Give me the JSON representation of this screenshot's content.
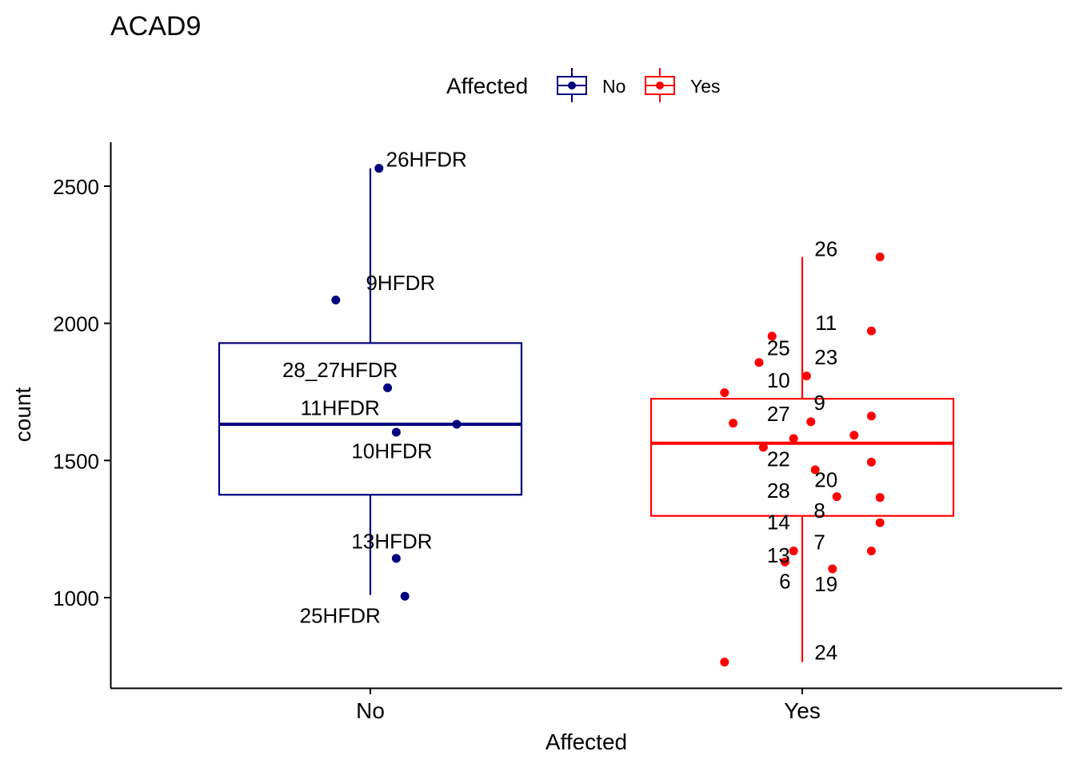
{
  "chart_data": {
    "type": "box",
    "title": "ACAD9",
    "xlabel": "Affected",
    "ylabel": "count",
    "ylim": [
      680,
      2660
    ],
    "yticks": [
      1000,
      1500,
      2000,
      2500
    ],
    "ytick_labels": [
      "1000",
      "1500",
      "2000",
      "2500"
    ],
    "categories": [
      "No",
      "Yes"
    ],
    "legend": {
      "title": "Affected",
      "position": "top",
      "entries": [
        {
          "label": "No",
          "color": "#00007f"
        },
        {
          "label": "Yes",
          "color": "#ff0000"
        }
      ]
    },
    "grid": false,
    "boxes": [
      {
        "group": "No",
        "color": "#00007f",
        "q1": 1375,
        "median": 1632,
        "q3": 1928,
        "whisker_low": 1010,
        "whisker_high": 2565
      },
      {
        "group": "Yes",
        "color": "#ff0000",
        "q1": 1298,
        "median": 1563,
        "q3": 1725,
        "whisker_low": 765,
        "whisker_high": 2242
      }
    ],
    "points": [
      {
        "group": "No",
        "jitter": 0.02,
        "y": 2565
      },
      {
        "group": "No",
        "jitter": -0.08,
        "y": 2085
      },
      {
        "group": "No",
        "jitter": 0.04,
        "y": 1765
      },
      {
        "group": "No",
        "jitter": 0.2,
        "y": 1632
      },
      {
        "group": "No",
        "jitter": 0.06,
        "y": 1603
      },
      {
        "group": "No",
        "jitter": 0.06,
        "y": 1143
      },
      {
        "group": "No",
        "jitter": 0.08,
        "y": 1005
      },
      {
        "group": "Yes",
        "jitter": 0.18,
        "y": 2242
      },
      {
        "group": "Yes",
        "jitter": 0.16,
        "y": 1972
      },
      {
        "group": "Yes",
        "jitter": -0.07,
        "y": 1953
      },
      {
        "group": "Yes",
        "jitter": -0.1,
        "y": 1857
      },
      {
        "group": "Yes",
        "jitter": 0.01,
        "y": 1808
      },
      {
        "group": "Yes",
        "jitter": -0.18,
        "y": 1747
      },
      {
        "group": "Yes",
        "jitter": 0.16,
        "y": 1662
      },
      {
        "group": "Yes",
        "jitter": 0.02,
        "y": 1641
      },
      {
        "group": "Yes",
        "jitter": -0.16,
        "y": 1636
      },
      {
        "group": "Yes",
        "jitter": 0.12,
        "y": 1592
      },
      {
        "group": "Yes",
        "jitter": -0.02,
        "y": 1580
      },
      {
        "group": "Yes",
        "jitter": -0.09,
        "y": 1548
      },
      {
        "group": "Yes",
        "jitter": 0.16,
        "y": 1494
      },
      {
        "group": "Yes",
        "jitter": 0.03,
        "y": 1466
      },
      {
        "group": "Yes",
        "jitter": 0.08,
        "y": 1368
      },
      {
        "group": "Yes",
        "jitter": 0.18,
        "y": 1365
      },
      {
        "group": "Yes",
        "jitter": 0.18,
        "y": 1273
      },
      {
        "group": "Yes",
        "jitter": -0.02,
        "y": 1170
      },
      {
        "group": "Yes",
        "jitter": 0.16,
        "y": 1170
      },
      {
        "group": "Yes",
        "jitter": -0.04,
        "y": 1130
      },
      {
        "group": "Yes",
        "jitter": 0.07,
        "y": 1105
      },
      {
        "group": "Yes",
        "jitter": -0.18,
        "y": 765
      }
    ],
    "annotations": [
      {
        "text": "26HFDR",
        "group": "No",
        "dx": 0.13,
        "y": 2598
      },
      {
        "text": "9HFDR",
        "group": "No",
        "dx": 0.07,
        "y": 2148
      },
      {
        "text": "28_27HFDR",
        "group": "No",
        "dx": -0.07,
        "y": 1830
      },
      {
        "text": "11HFDR",
        "group": "No",
        "dx": -0.07,
        "y": 1692
      },
      {
        "text": "10HFDR",
        "group": "No",
        "dx": 0.05,
        "y": 1535
      },
      {
        "text": "13HFDR",
        "group": "No",
        "dx": 0.05,
        "y": 1205
      },
      {
        "text": "25HFDR",
        "group": "No",
        "dx": -0.07,
        "y": 935
      },
      {
        "text": "26",
        "group": "Yes",
        "dx": 0.055,
        "y": 2272
      },
      {
        "text": "11",
        "group": "Yes",
        "dx": 0.055,
        "y": 2002
      },
      {
        "text": "23",
        "group": "Yes",
        "dx": 0.055,
        "y": 1877
      },
      {
        "text": "9",
        "group": "Yes",
        "dx": 0.04,
        "y": 1710
      },
      {
        "text": "20",
        "group": "Yes",
        "dx": 0.055,
        "y": 1430
      },
      {
        "text": "8",
        "group": "Yes",
        "dx": 0.04,
        "y": 1318
      },
      {
        "text": "7",
        "group": "Yes",
        "dx": 0.04,
        "y": 1203
      },
      {
        "text": "19",
        "group": "Yes",
        "dx": 0.055,
        "y": 1050
      },
      {
        "text": "24",
        "group": "Yes",
        "dx": 0.055,
        "y": 800
      },
      {
        "text": "25",
        "group": "Yes",
        "dx": -0.055,
        "y": 1910
      },
      {
        "text": "10",
        "group": "Yes",
        "dx": -0.055,
        "y": 1792
      },
      {
        "text": "27",
        "group": "Yes",
        "dx": -0.055,
        "y": 1670
      },
      {
        "text": "22",
        "group": "Yes",
        "dx": -0.055,
        "y": 1505
      },
      {
        "text": "28",
        "group": "Yes",
        "dx": -0.055,
        "y": 1390
      },
      {
        "text": "14",
        "group": "Yes",
        "dx": -0.055,
        "y": 1275
      },
      {
        "text": "13",
        "group": "Yes",
        "dx": -0.055,
        "y": 1155
      },
      {
        "text": "6",
        "group": "Yes",
        "dx": -0.04,
        "y": 1060
      }
    ]
  }
}
